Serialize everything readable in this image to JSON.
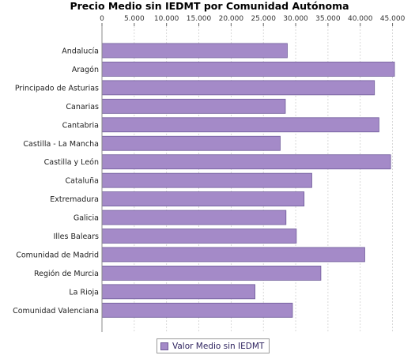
{
  "chart_data": {
    "type": "bar",
    "orientation": "horizontal",
    "title": "Precio Medio sin IEDMT por Comunidad Autónoma",
    "categories": [
      "Andalucía",
      "Aragón",
      "Principado de Asturias",
      "Canarias",
      "Cantabria",
      "Castilla - La Mancha",
      "Castilla y León",
      "Cataluña",
      "Extremadura",
      "Galicia",
      "Illes Balears",
      "Comunidad de Madrid",
      "Región de Murcia",
      "La Rioja",
      "Comunidad Valenciana"
    ],
    "series": [
      {
        "name": "Valor Medio sin IEDMT",
        "color": "#a48ac8",
        "values": [
          28700,
          45300,
          42200,
          28400,
          42900,
          27600,
          44700,
          32500,
          31300,
          28500,
          30100,
          40700,
          33900,
          23700,
          29500
        ]
      }
    ],
    "xlim": [
      0,
      47500
    ],
    "xticks": [
      0,
      5000,
      10000,
      15000,
      20000,
      25000,
      30000,
      35000,
      40000,
      45000
    ],
    "xtick_labels": [
      "0",
      "5.000",
      "10.000",
      "15.000",
      "20.000",
      "25.000",
      "30.000",
      "35.000",
      "40.000",
      "45.000"
    ],
    "xaxis_position": "top",
    "grid": true,
    "legend_position": "bottom-center",
    "legend": "Valor Medio sin IEDMT"
  }
}
